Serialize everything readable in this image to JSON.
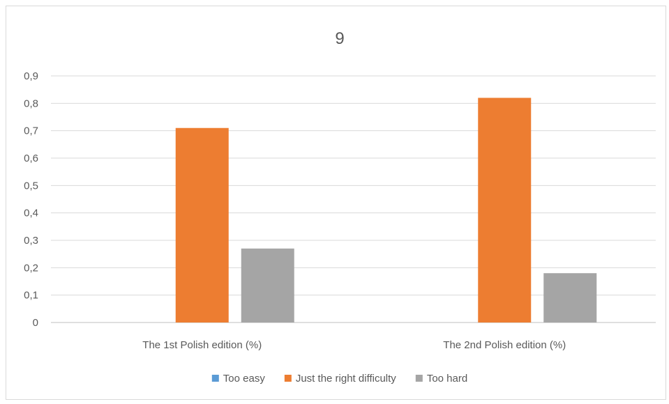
{
  "chart_data": {
    "type": "bar",
    "title": "9",
    "categories": [
      "The 1st Polish edition (%)",
      "The 2nd Polish edition (%)"
    ],
    "series": [
      {
        "name": "Too easy",
        "values": [
          0,
          0
        ],
        "color": "#5b9bd5"
      },
      {
        "name": "Just the right difficulty",
        "values": [
          0.71,
          0.82
        ],
        "color": "#ed7d31"
      },
      {
        "name": "Too hard",
        "values": [
          0.27,
          0.18
        ],
        "color": "#a5a5a5"
      }
    ],
    "yticks": [
      "0",
      "0,1",
      "0,2",
      "0,3",
      "0,4",
      "0,5",
      "0,6",
      "0,7",
      "0,8",
      "0,9"
    ],
    "ylim": [
      0,
      0.9
    ],
    "grid": true,
    "legend": "bottom"
  }
}
